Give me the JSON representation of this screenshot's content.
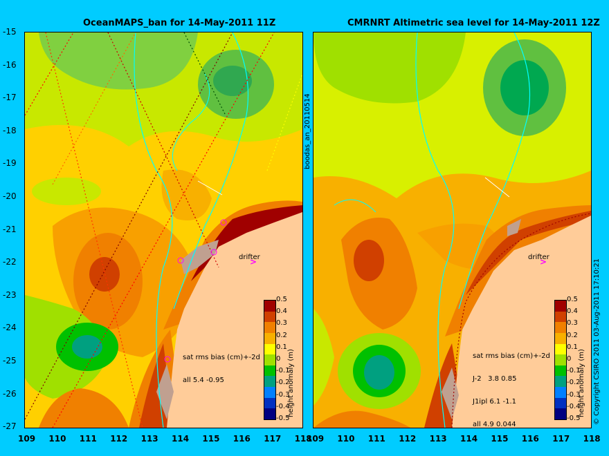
{
  "left_panel": {
    "title": "OceanMAPS_ban for 14-May-2011 11Z",
    "drifter_label": "drifter",
    "stats": [
      "sat rms bias (cm)+-2d",
      "all 5.4 -0.95"
    ]
  },
  "right_panel": {
    "title": "CMRNRT Altimetric sea level  for 14-May-2011 12Z",
    "drifter_label": "drifter",
    "stats": [
      "sat rms bias (cm)+-2d",
      "J-2   3.8 0.85",
      "J1ipl 6.1 -1.1",
      "all 4.9 0.044"
    ]
  },
  "y_ticks": [
    "-15",
    "-16",
    "-17",
    "-18",
    "-19",
    "-20",
    "-21",
    "-22",
    "-23",
    "-24",
    "-25",
    "-26",
    "-27"
  ],
  "x_ticks": [
    "109",
    "110",
    "111",
    "112",
    "113",
    "114",
    "115",
    "116",
    "117",
    "118"
  ],
  "colorbar": {
    "ticks": [
      "0.5",
      "0.4",
      "0.3",
      "0.2",
      "0.1",
      "0",
      "-0.1",
      "-0.2",
      "-0.3",
      "-0.4",
      "-0.5"
    ],
    "label": "height anomaly (m)",
    "colors": [
      "#a00000",
      "#d04000",
      "#f08000",
      "#f8b000",
      "#ffff00",
      "#a0e000",
      "#00c000",
      "#00a080",
      "#0080ff",
      "#0030c0",
      "#000080"
    ]
  },
  "side_label": "boodas_an_20110514",
  "copyright": "© Copyright CSIRO 2011  03-Aug-2011 17:10:21",
  "chart_data": {
    "type": "heatmap",
    "x_range": [
      109,
      118
    ],
    "y_range": [
      -27,
      -15
    ],
    "xlabel": "",
    "ylabel": "",
    "colorbar_range": [
      -0.5,
      0.5
    ],
    "colorbar_label": "height anomaly (m)"
  }
}
